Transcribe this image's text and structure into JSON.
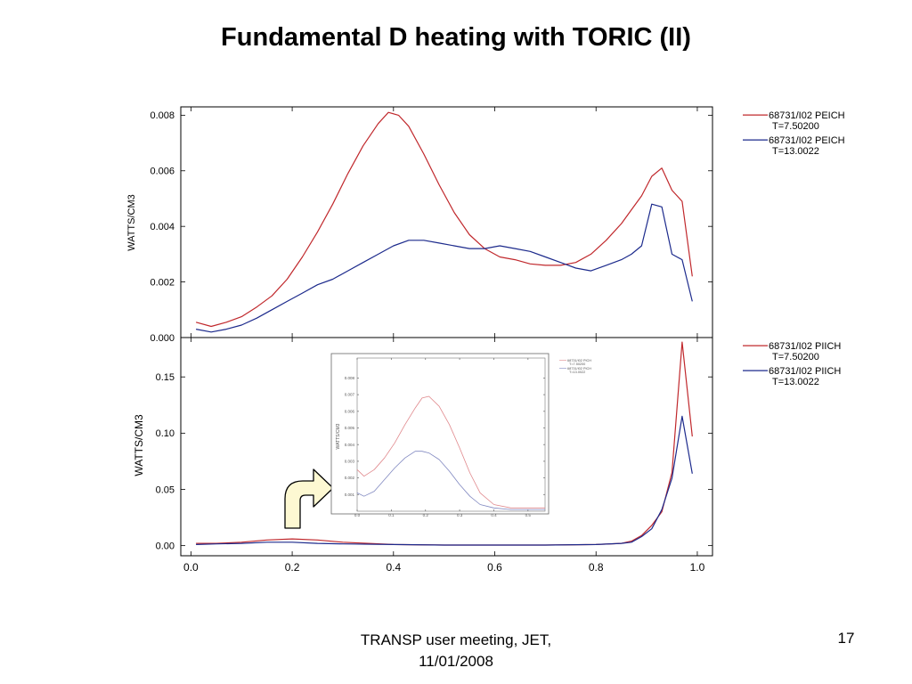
{
  "slide": {
    "title": "Fundamental D heating with TORIC (II)",
    "footer_line1": "TRANSP user meeting, JET,",
    "footer_line2": "11/01/2008",
    "page_number": "17"
  },
  "colors": {
    "red": "#c0282c",
    "blue": "#1c2a8c",
    "inset_red": "#e0888c",
    "inset_blue": "#8088c0",
    "arrow_fill": "#fdf8d2"
  },
  "chart_data": [
    {
      "type": "line",
      "panel": "top",
      "ylabel": "WATTS/CM3",
      "xlim": [
        -0.02,
        1.03
      ],
      "ylim": [
        0.0,
        0.0083
      ],
      "yticks": [
        0.0,
        0.002,
        0.004,
        0.006,
        0.008
      ],
      "ytick_labels": [
        "0.000",
        "0.002",
        "0.004",
        "0.006",
        "0.008"
      ],
      "series": [
        {
          "name": "68731/I02 PEICH",
          "legend_sub": "T=7.50200",
          "color": "red",
          "x": [
            0.01,
            0.04,
            0.07,
            0.1,
            0.13,
            0.16,
            0.19,
            0.22,
            0.25,
            0.28,
            0.31,
            0.34,
            0.37,
            0.39,
            0.41,
            0.43,
            0.46,
            0.49,
            0.52,
            0.55,
            0.58,
            0.61,
            0.64,
            0.67,
            0.7,
            0.73,
            0.76,
            0.79,
            0.82,
            0.85,
            0.87,
            0.89,
            0.91,
            0.93,
            0.95,
            0.97,
            0.99
          ],
          "y": [
            0.00055,
            0.0004,
            0.00055,
            0.00075,
            0.0011,
            0.0015,
            0.0021,
            0.0029,
            0.0038,
            0.0048,
            0.0059,
            0.0069,
            0.0077,
            0.0081,
            0.008,
            0.0076,
            0.0066,
            0.0055,
            0.0045,
            0.0037,
            0.0032,
            0.0029,
            0.0028,
            0.00265,
            0.0026,
            0.0026,
            0.0027,
            0.003,
            0.0035,
            0.0041,
            0.0046,
            0.0051,
            0.0058,
            0.0061,
            0.0053,
            0.0049,
            0.0022
          ]
        },
        {
          "name": "68731/I02 PEICH",
          "legend_sub": "T=13.0022",
          "color": "blue",
          "x": [
            0.01,
            0.04,
            0.07,
            0.1,
            0.13,
            0.16,
            0.19,
            0.22,
            0.25,
            0.28,
            0.31,
            0.34,
            0.37,
            0.4,
            0.43,
            0.46,
            0.49,
            0.52,
            0.55,
            0.58,
            0.61,
            0.64,
            0.67,
            0.7,
            0.73,
            0.76,
            0.79,
            0.82,
            0.85,
            0.87,
            0.89,
            0.91,
            0.93,
            0.95,
            0.97,
            0.99
          ],
          "y": [
            0.0003,
            0.0002,
            0.0003,
            0.00045,
            0.0007,
            0.001,
            0.0013,
            0.0016,
            0.0019,
            0.0021,
            0.0024,
            0.0027,
            0.003,
            0.0033,
            0.0035,
            0.0035,
            0.0034,
            0.0033,
            0.0032,
            0.0032,
            0.0033,
            0.0032,
            0.0031,
            0.0029,
            0.0027,
            0.0025,
            0.0024,
            0.0026,
            0.0028,
            0.003,
            0.0033,
            0.0048,
            0.0047,
            0.003,
            0.0028,
            0.0013
          ]
        }
      ]
    },
    {
      "type": "line",
      "panel": "bottom",
      "ylabel": "WATTS/CM3",
      "xlim": [
        -0.02,
        1.03
      ],
      "ylim": [
        -0.009,
        0.185
      ],
      "yticks": [
        0.0,
        0.05,
        0.1,
        0.15
      ],
      "ytick_labels": [
        "0.00",
        "0.05",
        "0.10",
        "0.15"
      ],
      "xticks": [
        0.0,
        0.2,
        0.4,
        0.6,
        0.8,
        1.0
      ],
      "xtick_labels": [
        "0.0",
        "0.2",
        "0.4",
        "0.6",
        "0.8",
        "1.0"
      ],
      "series": [
        {
          "name": "68731/I02 PIICH",
          "legend_sub": "T=7.50200",
          "color": "red",
          "x": [
            0.01,
            0.05,
            0.1,
            0.15,
            0.2,
            0.25,
            0.3,
            0.4,
            0.5,
            0.6,
            0.7,
            0.8,
            0.85,
            0.87,
            0.89,
            0.91,
            0.93,
            0.95,
            0.97,
            0.99
          ],
          "y": [
            0.002,
            0.002,
            0.003,
            0.005,
            0.006,
            0.005,
            0.003,
            0.001,
            0.0005,
            0.0005,
            0.0005,
            0.001,
            0.002,
            0.004,
            0.009,
            0.018,
            0.03,
            0.065,
            0.181,
            0.097
          ]
        },
        {
          "name": "68731/I02 PIICH",
          "legend_sub": "T=13.0022",
          "color": "blue",
          "x": [
            0.01,
            0.05,
            0.1,
            0.15,
            0.2,
            0.25,
            0.3,
            0.4,
            0.5,
            0.6,
            0.7,
            0.8,
            0.85,
            0.87,
            0.89,
            0.91,
            0.93,
            0.95,
            0.97,
            0.99
          ],
          "y": [
            0.001,
            0.0015,
            0.002,
            0.003,
            0.003,
            0.002,
            0.0015,
            0.001,
            0.0005,
            0.0005,
            0.0005,
            0.001,
            0.002,
            0.003,
            0.008,
            0.015,
            0.032,
            0.06,
            0.115,
            0.064
          ]
        }
      ]
    },
    {
      "type": "line",
      "panel": "inset",
      "ylabel": "WATTS/CM3",
      "xlim": [
        0.0,
        0.55
      ],
      "ylim": [
        0.0,
        0.0092
      ],
      "yticks": [
        0.001,
        0.002,
        0.003,
        0.004,
        0.005,
        0.006,
        0.007,
        0.008
      ],
      "ytick_labels": [
        "0.001",
        "0.002",
        "0.003",
        "0.004",
        "0.005",
        "0.006",
        "0.007",
        "0.008"
      ],
      "xticks": [
        0.0,
        0.1,
        0.2,
        0.3,
        0.4,
        0.5
      ],
      "xtick_labels": [
        "0.0",
        "0.1",
        "0.2",
        "0.3",
        "0.4",
        "0.5"
      ],
      "series": [
        {
          "name": "68731/I02 PICH",
          "legend_sub": "T=7.50200",
          "color": "inset_red",
          "x": [
            0.0,
            0.02,
            0.05,
            0.08,
            0.11,
            0.14,
            0.17,
            0.19,
            0.21,
            0.24,
            0.27,
            0.3,
            0.33,
            0.36,
            0.4,
            0.45,
            0.5,
            0.55
          ],
          "y": [
            0.0025,
            0.0021,
            0.0025,
            0.0032,
            0.0041,
            0.0052,
            0.0062,
            0.0068,
            0.0069,
            0.0063,
            0.0052,
            0.0038,
            0.0023,
            0.0011,
            0.0004,
            0.0002,
            0.0002,
            0.0002
          ]
        },
        {
          "name": "68731/I02 PICH",
          "legend_sub": "T=13.0022",
          "color": "inset_blue",
          "x": [
            0.0,
            0.02,
            0.05,
            0.08,
            0.11,
            0.14,
            0.17,
            0.19,
            0.21,
            0.24,
            0.27,
            0.3,
            0.33,
            0.36,
            0.4,
            0.45,
            0.5,
            0.55
          ],
          "y": [
            0.0011,
            0.0009,
            0.0012,
            0.0019,
            0.0026,
            0.0032,
            0.0036,
            0.0036,
            0.0035,
            0.0031,
            0.0024,
            0.0016,
            0.0009,
            0.0004,
            0.0002,
            0.0001,
            0.0001,
            0.0001
          ]
        }
      ]
    }
  ]
}
